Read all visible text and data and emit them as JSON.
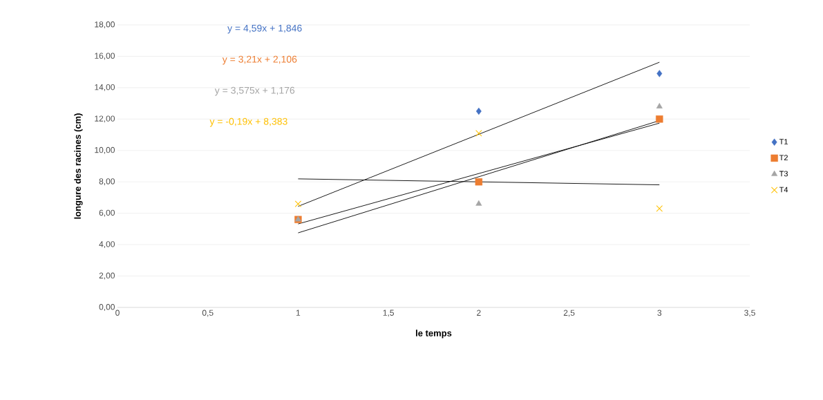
{
  "chart_data": {
    "type": "scatter",
    "xlabel": "le temps",
    "ylabel": "longure  des racines (cm)",
    "xlim": [
      0,
      3.5
    ],
    "xticks": [
      0,
      {
        "value": 0.5,
        "label": "0,5"
      },
      1,
      {
        "value": 1.5,
        "label": "1,5"
      },
      2,
      {
        "value": 2.5,
        "label": "2,5"
      },
      3,
      {
        "value": 3.5,
        "label": "3,5"
      }
    ],
    "ylim": [
      0,
      18
    ],
    "yticks": [
      {
        "value": 0,
        "label": "0,00"
      },
      {
        "value": 2,
        "label": "2,00"
      },
      {
        "value": 4,
        "label": "4,00"
      },
      {
        "value": 6,
        "label": "6,00"
      },
      {
        "value": 8,
        "label": "8,00"
      },
      {
        "value": 10,
        "label": "10,00"
      },
      {
        "value": 12,
        "label": "12,00"
      },
      {
        "value": 14,
        "label": "14,00"
      },
      {
        "value": 16,
        "label": "16,00"
      },
      {
        "value": 18,
        "label": "18,00"
      }
    ],
    "grid": "y",
    "legend": "right",
    "series": [
      {
        "name": "T1",
        "color": "#4472c4",
        "marker": "diamond",
        "x": [
          2,
          3
        ],
        "values": [
          12.5,
          14.9
        ]
      },
      {
        "name": "T2",
        "color": "#ed7d31",
        "marker": "square",
        "x": [
          1,
          2,
          3
        ],
        "values": [
          5.6,
          8.0,
          12.0
        ]
      },
      {
        "name": "T3",
        "color": "#a5a5a5",
        "marker": "triangle",
        "x": [
          1,
          2,
          3
        ],
        "values": [
          5.6,
          6.6,
          12.8
        ]
      },
      {
        "name": "T4",
        "color": "#ffc000",
        "marker": "cross",
        "x": [
          1,
          2,
          3
        ],
        "values": [
          6.6,
          11.1,
          6.3
        ]
      },
      {
        "type": "line",
        "color": "#000000",
        "marker": "none",
        "x": [
          1,
          3
        ],
        "values": [
          6.44,
          15.62
        ]
      },
      {
        "type": "line",
        "color": "#000000",
        "marker": "none",
        "x": [
          1,
          3
        ],
        "values": [
          5.32,
          11.74
        ]
      },
      {
        "type": "line",
        "color": "#000000",
        "marker": "none",
        "x": [
          1,
          3
        ],
        "values": [
          4.75,
          11.9
        ]
      },
      {
        "type": "line",
        "color": "#000000",
        "marker": "none",
        "x": [
          1,
          3
        ],
        "values": [
          8.19,
          7.81
        ]
      }
    ],
    "annotations": [
      "y = 4,59x + 1,846",
      "y = 3,21x + 2,106",
      "y = 3,575x + 1,176",
      "y = -0,19x + 8,383"
    ]
  }
}
